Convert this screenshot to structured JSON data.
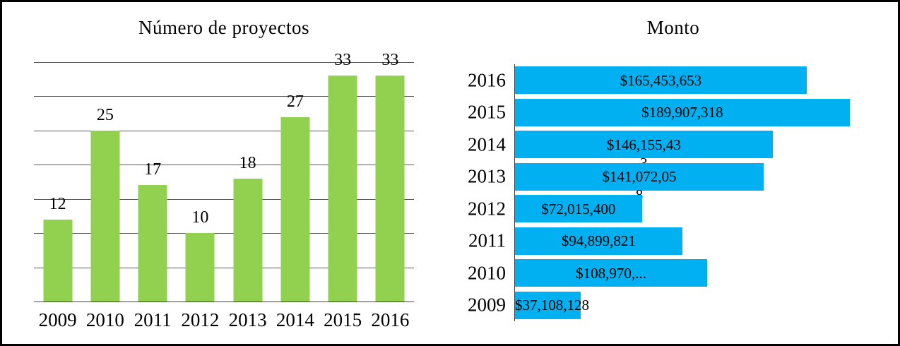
{
  "page": {
    "background": "#ffffff",
    "border_color": "#000000",
    "text_color": "#000000"
  },
  "chart_data": [
    {
      "type": "bar",
      "orientation": "vertical",
      "title": "Número de proyectos",
      "categories": [
        "2009",
        "2010",
        "2011",
        "2012",
        "2013",
        "2014",
        "2015",
        "2016"
      ],
      "values": [
        12,
        25,
        17,
        10,
        18,
        27,
        33,
        33
      ],
      "data_labels": [
        "12",
        "25",
        "17",
        "10",
        "18",
        "27",
        "33",
        "33"
      ],
      "ylim": [
        0,
        35
      ],
      "grid_step": 5,
      "grid": true,
      "legend": false,
      "bar_color": "#92D050",
      "gridline_color": "#595959",
      "axis_color": "#404040"
    },
    {
      "type": "bar",
      "orientation": "horizontal",
      "title": "Monto",
      "categories": [
        "2016",
        "2015",
        "2014",
        "2013",
        "2012",
        "2011",
        "2010",
        "2009"
      ],
      "values": [
        165453653,
        189907318,
        146155433,
        141072058,
        72015400,
        94899821,
        108970000,
        37108128
      ],
      "data_labels": [
        "$165,453,653",
        "$189,907,318",
        "$146,155,43\n3",
        "$141,072,05\n8",
        "$72,015,400",
        "$94,899,821",
        "$108,970,...",
        "$37,108,128"
      ],
      "xlim": [
        0,
        200000000
      ],
      "grid": false,
      "legend": false,
      "bar_color": "#00B0F0",
      "axis_color": "#404040"
    }
  ]
}
